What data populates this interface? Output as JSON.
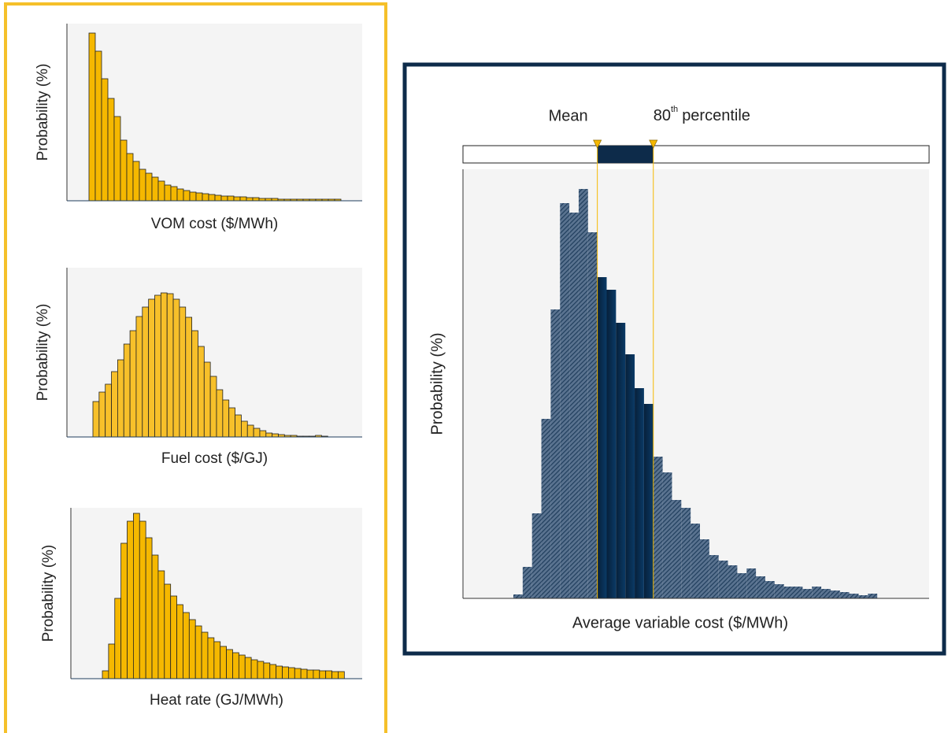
{
  "chart_data": [
    {
      "type": "histogram",
      "ylabel": "Probability (%)",
      "xlabel": "VOM cost ($/MWh)",
      "color": "#f5b800",
      "ylim": [
        0,
        225
      ],
      "values": [
        213,
        190,
        155,
        130,
        107,
        77,
        60,
        50,
        40,
        35,
        30,
        25,
        20,
        18,
        15,
        13,
        11,
        10,
        9,
        8,
        7,
        6,
        6,
        5,
        5,
        4,
        4,
        3,
        3,
        3,
        2,
        2,
        2,
        2,
        2,
        2,
        2,
        2,
        2,
        2
      ]
    },
    {
      "type": "histogram",
      "ylabel": "Probability (%)",
      "xlabel": "Fuel cost ($/GJ)",
      "color": "#f7c02a",
      "ylim": [
        0,
        215
      ],
      "values": [
        45,
        57,
        67,
        83,
        98,
        118,
        135,
        153,
        165,
        175,
        180,
        183,
        182,
        175,
        165,
        152,
        135,
        115,
        95,
        77,
        60,
        47,
        37,
        28,
        20,
        15,
        11,
        8,
        5,
        4,
        3,
        2,
        2,
        1,
        1,
        1,
        2,
        1
      ]
    },
    {
      "type": "histogram",
      "ylabel": "Probability (%)",
      "xlabel": "Heat rate (GJ/MWh)",
      "color": "#f5b800",
      "ylim": [
        0,
        217
      ],
      "values": [
        10,
        44,
        102,
        172,
        200,
        210,
        200,
        179,
        157,
        137,
        120,
        105,
        94,
        84,
        75,
        67,
        59,
        52,
        47,
        41,
        37,
        33,
        30,
        27,
        24,
        22,
        20,
        18,
        16,
        15,
        14,
        13,
        12,
        11,
        11,
        10,
        10,
        9,
        9
      ]
    },
    {
      "type": "histogram",
      "ylabel": "Probability (%)",
      "xlabel": "Average variable cost ($/MWh)",
      "color": "#1f3d5c",
      "ylim": [
        0,
        545
      ],
      "mean_label": "Mean",
      "percentile_number": "80",
      "percentile_suffix": "th",
      "percentile_label": "percentile",
      "mean_bin": 9,
      "percentile_bin": 15,
      "values": [
        5,
        40,
        108,
        228,
        367,
        502,
        490,
        520,
        465,
        408,
        392,
        350,
        310,
        267,
        247,
        180,
        160,
        125,
        115,
        95,
        75,
        55,
        48,
        42,
        32,
        38,
        28,
        22,
        18,
        15,
        15,
        12,
        15,
        12,
        10,
        8,
        6,
        4,
        6
      ]
    }
  ]
}
